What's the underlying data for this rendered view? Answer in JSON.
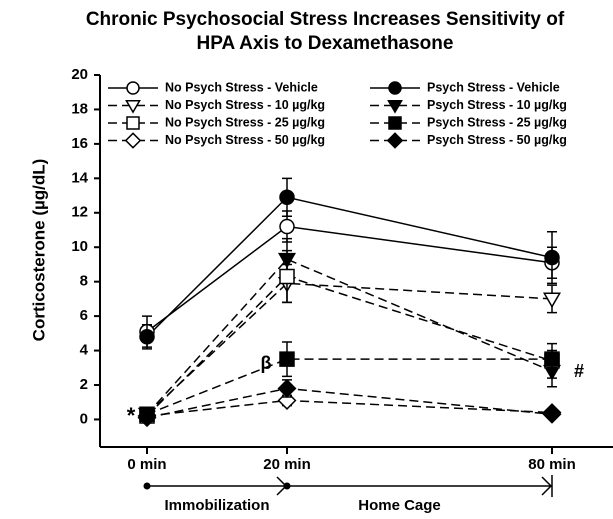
{
  "chart_data": {
    "type": "line",
    "title": [
      "Chronic Psychosocial Stress Increases Sensitivity of",
      "HPA Axis to Dexamethasone"
    ],
    "ylabel": "Corticosterone (µg/dL)",
    "categories": [
      "0 min",
      "20 min",
      "80 min"
    ],
    "ylim": [
      -1.6,
      20
    ],
    "yticks": [
      0,
      2,
      4,
      6,
      8,
      10,
      12,
      14,
      16,
      18,
      20
    ],
    "color": "#000000",
    "series": [
      {
        "name": "No Psych Stress - Vehicle",
        "marker": "circle",
        "filled": false,
        "line_style": "solid",
        "values": [
          5.1,
          11.2,
          9.1
        ],
        "errors": [
          0.9,
          0.9,
          0.9
        ]
      },
      {
        "name": "Psych Stress - Vehicle",
        "marker": "circle",
        "filled": true,
        "line_style": "solid",
        "values": [
          4.8,
          12.9,
          9.4
        ],
        "errors": [
          0.7,
          1.1,
          1.5
        ]
      },
      {
        "name": "No Psych Stress - 10 µg/kg",
        "marker": "triangle-down",
        "filled": false,
        "line_style": "dashed",
        "values": [
          0.3,
          7.9,
          7.0
        ],
        "errors": [
          0.1,
          1.1,
          0.8
        ]
      },
      {
        "name": "Psych Stress - 10 µg/kg",
        "marker": "triangle-down",
        "filled": true,
        "line_style": "dashed",
        "values": [
          0.3,
          9.3,
          2.8
        ],
        "errors": [
          0.1,
          1.2,
          0.9
        ]
      },
      {
        "name": "No Psych Stress - 25 µg/kg",
        "marker": "square",
        "filled": false,
        "line_style": "dashed",
        "values": [
          0.2,
          8.3,
          3.4
        ],
        "errors": [
          0.1,
          1.5,
          1.0
        ]
      },
      {
        "name": "Psych Stress - 25 µg/kg",
        "marker": "square",
        "filled": true,
        "line_style": "dashed",
        "values": [
          0.3,
          3.5,
          3.5
        ],
        "errors": [
          0.1,
          1.0,
          0.5
        ]
      },
      {
        "name": "No Psych Stress - 50 µg/kg",
        "marker": "diamond",
        "filled": false,
        "line_style": "dashed",
        "values": [
          0.2,
          1.1,
          0.4
        ],
        "errors": [
          0.1,
          0.3,
          0.1
        ]
      },
      {
        "name": "Psych Stress - 50 µg/kg",
        "marker": "diamond",
        "filled": true,
        "line_style": "dashed",
        "values": [
          0.1,
          1.8,
          0.3
        ],
        "errors": [
          0.1,
          0.5,
          0.1
        ]
      }
    ],
    "annotations": [
      "*",
      "β",
      "#"
    ],
    "phases": [
      "Immobilization",
      "Home Cage"
    ]
  }
}
